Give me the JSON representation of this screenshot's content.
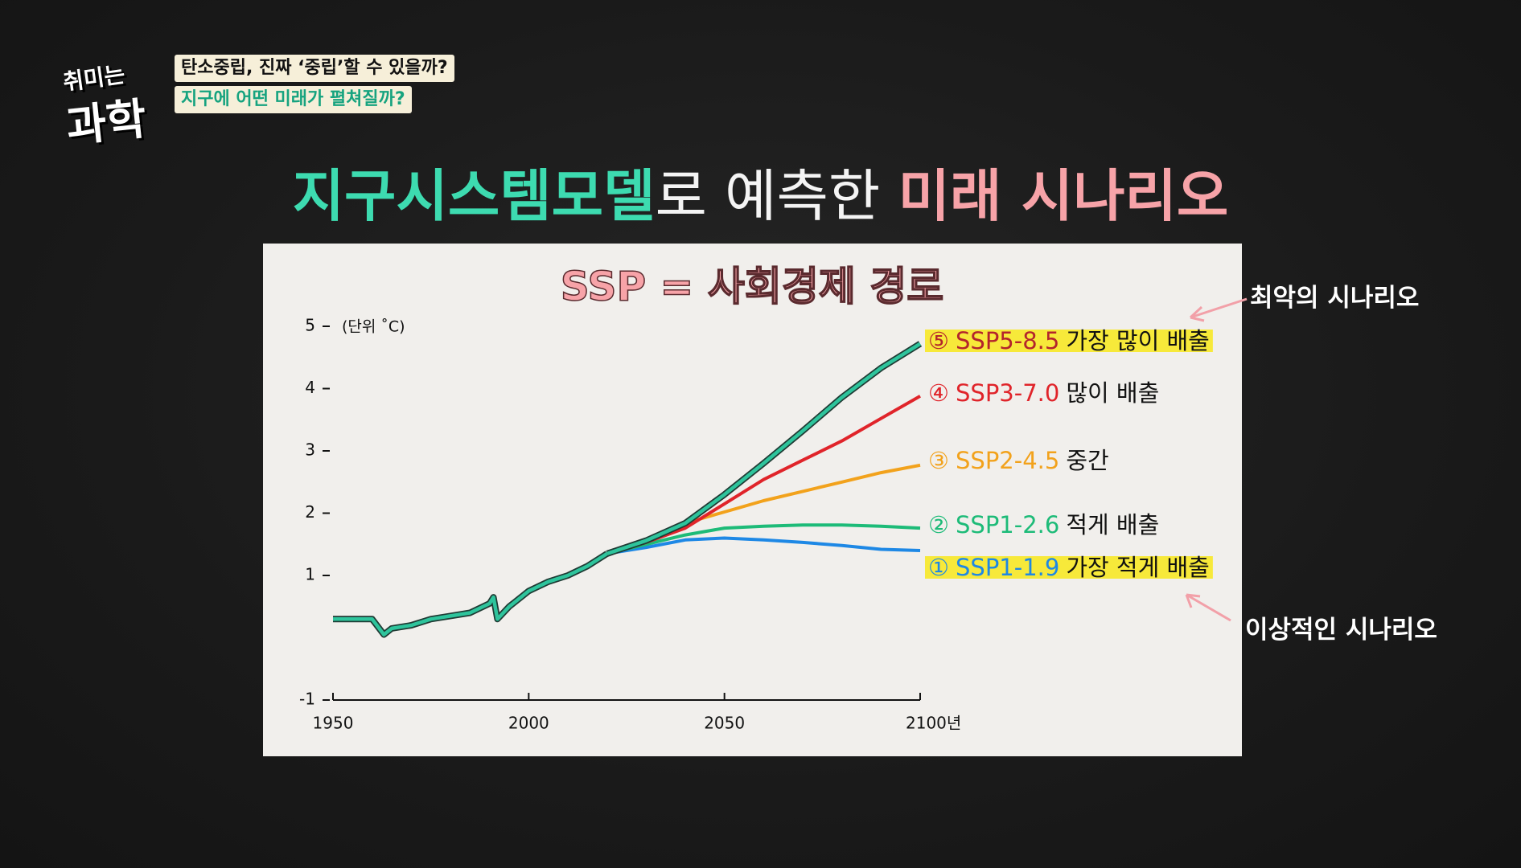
{
  "header": {
    "logo": [
      "취미는",
      "과학"
    ],
    "tags": [
      "탄소중립, 진짜 ‘중립’할 수 있을까?",
      "지구에 어떤 미래가 펼쳐질까?"
    ]
  },
  "headline": {
    "green": "지구시스템모델",
    "white": "로 예측한 ",
    "pink": "미래 시나리오"
  },
  "annotations": {
    "worst": "최악의 시나리오",
    "ideal": "이상적인 시나리오"
  },
  "chart_data": {
    "type": "line",
    "title": "SSP = 사회경제 경로",
    "unit": "(단위 ˚C)",
    "xlim": [
      1950,
      2100
    ],
    "xticks": [
      1950,
      2000,
      2050,
      {
        "value": 2100,
        "label": "2100년"
      }
    ],
    "ylim": [
      -1,
      5
    ],
    "yticks": [
      -1,
      1,
      2,
      3,
      4,
      5
    ],
    "series": [
      {
        "color": "#2ec49c",
        "x": [
          1950,
          1955,
          1960,
          1963,
          1965,
          1970,
          1975,
          1980,
          1985,
          1990,
          1991,
          1992,
          1995,
          2000,
          2005,
          2010,
          2015,
          2020
        ],
        "values": [
          0.3,
          0.3,
          0.3,
          0.05,
          0.15,
          0.2,
          0.3,
          0.35,
          0.4,
          0.55,
          0.65,
          0.3,
          0.5,
          0.75,
          0.9,
          1.0,
          1.15,
          1.35
        ]
      },
      {
        "name": "SSP5-8.5",
        "number": "⑤",
        "description": "가장 많이 배출",
        "color": "#2ec49c",
        "label_color": "#b3242c",
        "highlight": true,
        "x": [
          2020,
          2030,
          2040,
          2050,
          2060,
          2070,
          2080,
          2090,
          2100
        ],
        "values": [
          1.35,
          1.56,
          1.84,
          2.3,
          2.8,
          3.32,
          3.86,
          4.33,
          4.72
        ]
      },
      {
        "name": "SSP3-7.0",
        "number": "④",
        "description": "많이 배출",
        "color": "#e0242a",
        "label_color": "#e0242a",
        "highlight": false,
        "x": [
          2020,
          2030,
          2040,
          2050,
          2060,
          2070,
          2080,
          2090,
          2100
        ],
        "values": [
          1.35,
          1.53,
          1.76,
          2.15,
          2.54,
          2.85,
          3.16,
          3.52,
          3.88
        ]
      },
      {
        "name": "SSP2-4.5",
        "number": "③",
        "description": "중간",
        "color": "#f2a21c",
        "label_color": "#f2a21c",
        "highlight": false,
        "x": [
          2020,
          2030,
          2040,
          2050,
          2060,
          2070,
          2080,
          2090,
          2100
        ],
        "values": [
          1.35,
          1.56,
          1.84,
          2.02,
          2.2,
          2.35,
          2.5,
          2.65,
          2.77
        ]
      },
      {
        "name": "SSP1-2.6",
        "number": "②",
        "description": "적게 배출",
        "color": "#1dbb78",
        "label_color": "#1dbb78",
        "highlight": false,
        "x": [
          2020,
          2030,
          2040,
          2050,
          2060,
          2070,
          2080,
          2090,
          2100
        ],
        "values": [
          1.35,
          1.5,
          1.65,
          1.76,
          1.79,
          1.81,
          1.81,
          1.79,
          1.76
        ]
      },
      {
        "name": "SSP1-1.9",
        "number": "①",
        "description": "가장 적게 배출",
        "color": "#1e88e5",
        "label_color": "#1e88e5",
        "highlight": true,
        "x": [
          2020,
          2030,
          2040,
          2050,
          2060,
          2070,
          2080,
          2090,
          2100
        ],
        "values": [
          1.35,
          1.45,
          1.57,
          1.6,
          1.57,
          1.53,
          1.48,
          1.42,
          1.4
        ]
      }
    ]
  }
}
